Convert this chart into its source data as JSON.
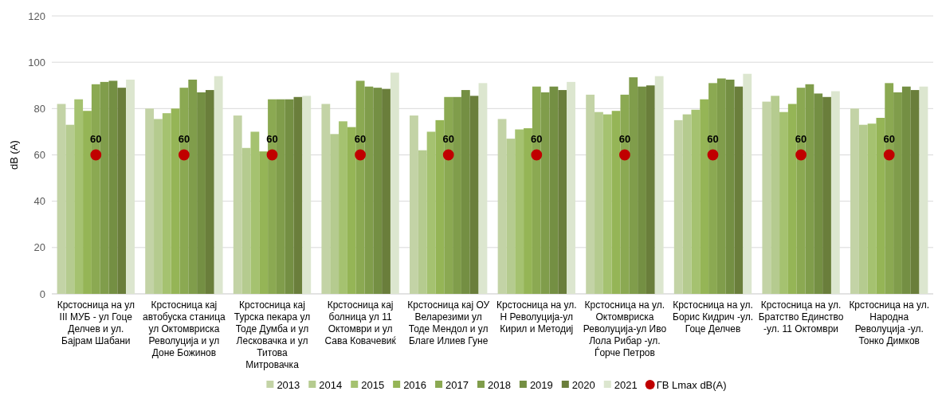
{
  "chart_data": {
    "type": "bar",
    "ylabel": "dB (A)",
    "categories": [
      "Крстосница на ул III МУБ - ул Гоце Делчев и ул. Бајрам Шабани",
      "Крстосница кај автобуска станица ул Октомвриска Револуција и ул Доне Божинов",
      "Крстосница кај Турска пекара ул Тоде Думба и ул Лесковачка и ул Титова Митровачка",
      "Крстосница кај болница ул 11 Октомври и ул Сава Ковачевиќ",
      "Крстосница кај ОУ Веларезими ул Тоде Мендол и ул Благе Илиев Гуне",
      "Крстосница на ул. Н Револуција-ул Кирил и Методиј",
      "Крстосница на ул. Октомвриска Револуција-ул Иво Лола Рибар -ул. Ѓорче Петров",
      "Крстосница на ул. Борис Кидрич -ул. Гоце Делчев",
      "Крстосница на ул. Братство Единство -ул. 11 Октомври",
      "Крстосница на ул. Народна Револуција -ул. Тонко Димков"
    ],
    "series": [
      {
        "name": "2013",
        "color": "#c3d3a6",
        "values": [
          82,
          80,
          77,
          82,
          77,
          75.5,
          86,
          75,
          83,
          80
        ]
      },
      {
        "name": "2014",
        "color": "#b5cb8f",
        "values": [
          73,
          75.5,
          63,
          69,
          62,
          67,
          78.5,
          77.5,
          85.5,
          73
        ]
      },
      {
        "name": "2015",
        "color": "#a5c270",
        "values": [
          84,
          78,
          70,
          74.5,
          70,
          71,
          77.5,
          79.5,
          78.5,
          73.5
        ]
      },
      {
        "name": "2016",
        "color": "#95b556",
        "values": [
          79,
          80,
          61.5,
          72,
          75,
          71.5,
          79,
          84,
          82,
          76
        ]
      },
      {
        "name": "2017",
        "color": "#8ba952",
        "values": [
          90.5,
          89,
          84,
          92,
          85,
          89.5,
          86,
          91,
          89,
          91
        ]
      },
      {
        "name": "2018",
        "color": "#809d4b",
        "values": [
          91.5,
          92.5,
          84,
          89.5,
          85,
          87,
          93.5,
          93,
          90.5,
          87
        ]
      },
      {
        "name": "2019",
        "color": "#748f43",
        "values": [
          92,
          87,
          84,
          89,
          88,
          89.5,
          89.5,
          92.5,
          86.5,
          89.5
        ]
      },
      {
        "name": "2020",
        "color": "#6a7e3b",
        "values": [
          89,
          88,
          85,
          88.5,
          85.5,
          88,
          90,
          89.5,
          85,
          88
        ]
      },
      {
        "name": "2021",
        "color": "#dce6cf",
        "values": [
          92.5,
          94,
          85.5,
          95.5,
          91,
          91.5,
          94,
          95,
          87.5,
          89.5
        ]
      },
      {
        "name": "ГВ Lmax dB(A)",
        "type": "scatter",
        "color": "#c00000",
        "marker": "circle",
        "x": [
          "Крстосница на ул III МУБ - ул Гоце Делчев и ул. Бајрам Шабани",
          "Крстосница кај автобуска станица ул Октомвриска Револуција и ул Доне Божинов",
          "Крстосница кај Турска пекара ул Тоде Думба и ул Лесковачка и ул Титова Митровачка",
          "Крстосница кај болница ул 11 Октомври и ул Сава Ковачевиќ",
          "Крстосница кај ОУ Веларезими ул Тоде Мендол и ул Благе Илиев Гуне",
          "Крстосница на ул. Н Револуција-ул Кирил и Методиј",
          "Крстосница на ул. Октомвриска Револуција-ул Иво Лола Рибар -ул. Ѓорче Петров",
          "Крстосница на ул. Борис Кидрич -ул. Гоце Делчев",
          "Крстосница на ул. Братство Единство -ул. 11 Октомври",
          "Крстосница на ул. Народна Револуција -ул. Тонко Димков"
        ],
        "values": [
          60,
          60,
          60,
          60,
          60,
          60,
          60,
          60,
          60,
          60
        ],
        "value_labels": [
          "60",
          "60",
          "60",
          "60",
          "60",
          "60",
          "60",
          "60",
          "60",
          "60"
        ]
      }
    ],
    "ylim": [
      0,
      120
    ],
    "yticks": [
      0,
      20,
      40,
      60,
      80,
      100,
      120
    ],
    "grid": "y",
    "legend": "bottom"
  }
}
